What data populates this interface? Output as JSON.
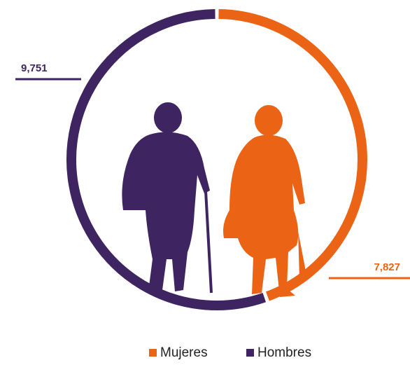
{
  "chart_data": {
    "type": "donut",
    "categories": [
      "Mujeres",
      "Hombres"
    ],
    "values": [
      7827,
      9751
    ],
    "value_labels": [
      "7,827",
      "9,751"
    ],
    "colors": [
      "#eb6416",
      "#3f2462"
    ]
  }
}
